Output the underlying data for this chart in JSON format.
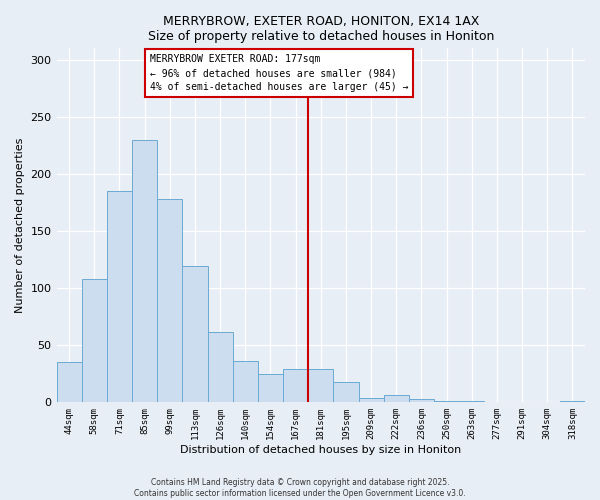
{
  "title": "MERRYBROW, EXETER ROAD, HONITON, EX14 1AX",
  "subtitle": "Size of property relative to detached houses in Honiton",
  "xlabel": "Distribution of detached houses by size in Honiton",
  "ylabel": "Number of detached properties",
  "bar_labels": [
    "44sqm",
    "58sqm",
    "71sqm",
    "85sqm",
    "99sqm",
    "113sqm",
    "126sqm",
    "140sqm",
    "154sqm",
    "167sqm",
    "181sqm",
    "195sqm",
    "209sqm",
    "222sqm",
    "236sqm",
    "250sqm",
    "263sqm",
    "277sqm",
    "291sqm",
    "304sqm",
    "318sqm"
  ],
  "bar_values": [
    35,
    108,
    185,
    230,
    178,
    119,
    62,
    36,
    25,
    29,
    29,
    18,
    4,
    6,
    3,
    1,
    1,
    0,
    0,
    0,
    1
  ],
  "bar_color": "#ccddf0",
  "bar_edge_color": "#6aaad4",
  "vline_index": 10,
  "vline_color": "#cc0000",
  "annotation_title": "MERRYBROW EXETER ROAD: 177sqm",
  "annotation_line1": "← 96% of detached houses are smaller (984)",
  "annotation_line2": "4% of semi-detached houses are larger (45) →",
  "annotation_box_color": "#cc0000",
  "ylim": [
    0,
    310
  ],
  "yticks": [
    0,
    50,
    100,
    150,
    200,
    250,
    300
  ],
  "footer_line1": "Contains HM Land Registry data © Crown copyright and database right 2025.",
  "footer_line2": "Contains public sector information licensed under the Open Government Licence v3.0.",
  "bg_color": "#e8eef5",
  "plot_bg_color": "#e8eef5",
  "grid_color": "#ffffff"
}
